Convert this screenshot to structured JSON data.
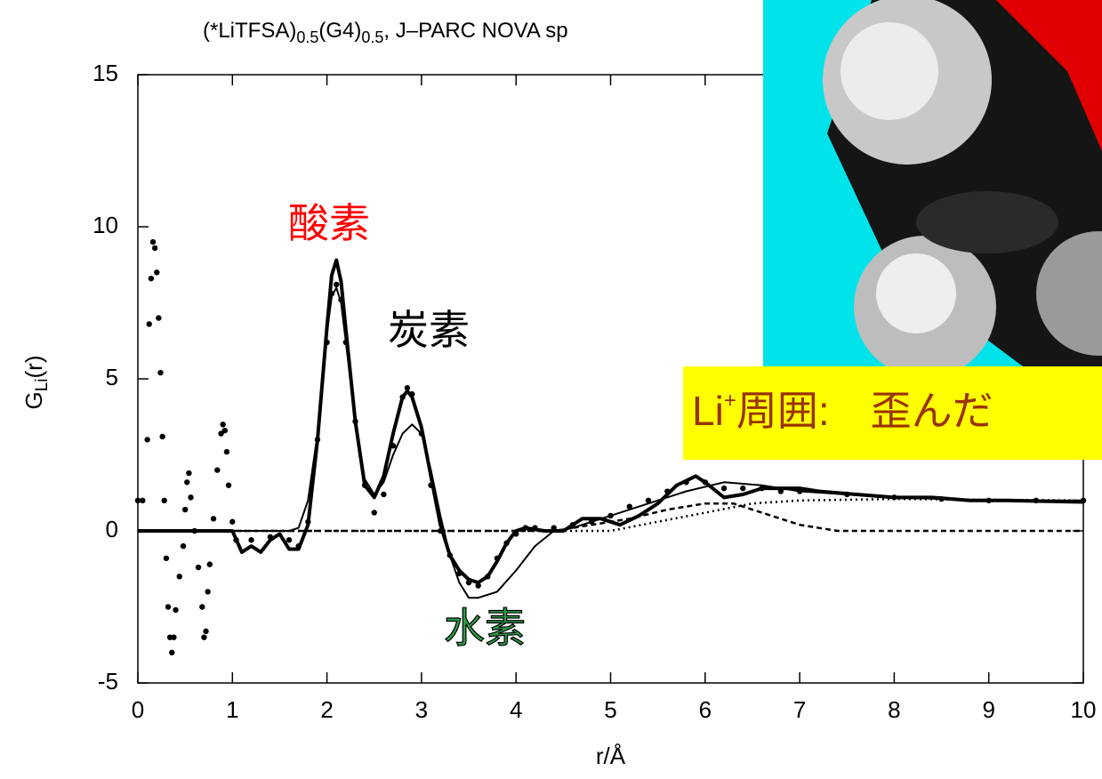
{
  "chart_data": {
    "type": "line",
    "title": [
      "(*LiTFSA)",
      "0.5",
      "(G4)",
      "0.5",
      ", J–PARC NOVA sp"
    ],
    "ylabel": [
      "G",
      "Li",
      "(r)"
    ],
    "xlabel": "r/Å",
    "xlim": [
      0,
      10
    ],
    "ylim": [
      -5,
      15
    ],
    "xticks": [
      0,
      1,
      2,
      3,
      4,
      5,
      6,
      7,
      8,
      9,
      10
    ],
    "yticks": [
      -5,
      0,
      5,
      10,
      15
    ],
    "series": [
      {
        "style": "points",
        "color": "#000000",
        "x": [
          0,
          0.05,
          0.1,
          0.12,
          0.14,
          0.16,
          0.18,
          0.2,
          0.22,
          0.24,
          0.26,
          0.28,
          0.3,
          0.32,
          0.34,
          0.36,
          0.38,
          0.4,
          0.44,
          0.48,
          0.5,
          0.52,
          0.54,
          0.56,
          0.6,
          0.64,
          0.68,
          0.7,
          0.72,
          0.74,
          0.76,
          0.8,
          0.84,
          0.88,
          0.9,
          0.92,
          0.94,
          0.96,
          1.0,
          1.04,
          1.2,
          1.4,
          1.6,
          1.7,
          1.8,
          1.9,
          2.0,
          2.05,
          2.1,
          2.15,
          2.2,
          2.3,
          2.4,
          2.5,
          2.6,
          2.7,
          2.8,
          2.85,
          2.9,
          3.0,
          3.1,
          3.2,
          3.3,
          3.4,
          3.5,
          3.6,
          3.7,
          3.8,
          3.9,
          4.0,
          4.1,
          4.2,
          4.4,
          4.6,
          4.8,
          5.0,
          5.2,
          5.4,
          5.6,
          5.8,
          6.0,
          6.2,
          6.4,
          6.6,
          6.8,
          7.0,
          7.5,
          8.0,
          8.5,
          9.0,
          9.5,
          10
        ],
        "values": [
          1,
          1,
          3,
          6.8,
          8.3,
          9.5,
          9.3,
          8.5,
          7.0,
          5.2,
          3.1,
          1,
          -0.9,
          -2.5,
          -3.5,
          -4,
          -3.5,
          -2.6,
          -1.5,
          -0.5,
          0.7,
          1.6,
          1.9,
          1.1,
          0,
          -1.2,
          -2.5,
          -3.5,
          -3.3,
          -2,
          -1.1,
          0.4,
          2.0,
          3.2,
          3.5,
          3.3,
          2.6,
          1.5,
          0.3,
          -0.3,
          -0.3,
          -0.2,
          -0.3,
          -0.5,
          0.3,
          3,
          6.2,
          7.8,
          8.1,
          7.6,
          6.2,
          3.6,
          1.5,
          0.6,
          1.2,
          2.8,
          4.4,
          4.7,
          4.5,
          3.2,
          1.5,
          0,
          -0.8,
          -1.4,
          -1.7,
          -1.8,
          -1.5,
          -0.9,
          -0.4,
          -0.1,
          0.1,
          0.1,
          0.1,
          0.2,
          0.3,
          0.5,
          0.8,
          1.0,
          1.3,
          1.6,
          1.6,
          1.4,
          1.4,
          1.4,
          1.3,
          1.3,
          1.2,
          1.1,
          1.05,
          1.0,
          1.0,
          1.0
        ]
      },
      {
        "style": "thick",
        "color": "#000000",
        "x": [
          0,
          1.0,
          1.1,
          1.2,
          1.3,
          1.4,
          1.5,
          1.6,
          1.7,
          1.8,
          1.9,
          2.0,
          2.05,
          2.1,
          2.15,
          2.2,
          2.3,
          2.4,
          2.5,
          2.6,
          2.7,
          2.8,
          2.85,
          2.9,
          3.0,
          3.1,
          3.2,
          3.3,
          3.4,
          3.5,
          3.6,
          3.7,
          3.8,
          3.9,
          4.0,
          4.1,
          4.3,
          4.5,
          4.7,
          4.9,
          5.1,
          5.3,
          5.5,
          5.7,
          5.9,
          6.0,
          6.2,
          6.4,
          6.6,
          6.8,
          7.0,
          7.2,
          7.6,
          8.0,
          8.4,
          8.8,
          9.2,
          10
        ],
        "values": [
          0,
          0,
          -0.7,
          -0.5,
          -0.7,
          -0.3,
          -0.1,
          -0.6,
          -0.6,
          0.2,
          3.0,
          6.7,
          8.4,
          8.9,
          8.2,
          6.6,
          3.6,
          1.5,
          1.1,
          1.8,
          3.2,
          4.4,
          4.6,
          4.4,
          3.4,
          1.8,
          0.2,
          -0.8,
          -1.3,
          -1.6,
          -1.7,
          -1.5,
          -1.0,
          -0.4,
          0.0,
          0.1,
          0.0,
          0.0,
          0.4,
          0.4,
          0.2,
          0.5,
          0.9,
          1.5,
          1.8,
          1.6,
          1.1,
          1.2,
          1.4,
          1.4,
          1.4,
          1.3,
          1.2,
          1.1,
          1.1,
          1.0,
          1.0,
          0.95
        ]
      },
      {
        "style": "thin",
        "color": "#000000",
        "x": [
          0,
          1.6,
          1.7,
          1.8,
          1.9,
          2.0,
          2.05,
          2.1,
          2.15,
          2.2,
          2.3,
          2.4,
          2.5,
          2.6,
          2.7,
          2.8,
          2.9,
          3.0,
          3.1,
          3.2,
          3.3,
          3.4,
          3.5,
          3.6,
          3.8,
          4.0,
          4.2,
          4.4,
          4.6,
          4.8,
          5.0,
          5.4,
          5.8,
          6.2,
          6.6,
          7.0,
          7.5,
          8,
          9,
          10
        ],
        "values": [
          0,
          0,
          0.1,
          1.0,
          3.2,
          6.5,
          7.7,
          8.0,
          7.5,
          6.2,
          3.6,
          1.7,
          1.2,
          1.6,
          2.5,
          3.2,
          3.5,
          3.2,
          2.0,
          0.5,
          -0.8,
          -1.7,
          -2.2,
          -2.2,
          -2.0,
          -1.3,
          -0.5,
          0,
          0.1,
          0.3,
          0.5,
          0.9,
          1.3,
          1.6,
          1.5,
          1.3,
          1.2,
          1.1,
          1.0,
          1.0
        ]
      },
      {
        "style": "dashed",
        "color": "#000000",
        "x": [
          0,
          4.4,
          4.8,
          5.2,
          5.6,
          6.0,
          6.3,
          6.6,
          7.0,
          7.4,
          10
        ],
        "values": [
          0,
          0,
          0.2,
          0.4,
          0.7,
          0.9,
          0.9,
          0.6,
          0.2,
          0.0,
          0
        ]
      },
      {
        "style": "dotted",
        "color": "#000000",
        "x": [
          0,
          5,
          5.5,
          6.0,
          6.5,
          7.0,
          8,
          10
        ],
        "values": [
          0,
          0,
          0.3,
          0.6,
          0.9,
          1.0,
          1.05,
          1.0
        ]
      }
    ],
    "annotations": [
      {
        "text": "酸素",
        "color": "#ff0000"
      },
      {
        "text": "炭素",
        "color": "#000000"
      },
      {
        "text": "水素",
        "color": "#2e9b4a"
      }
    ],
    "box_text": [
      "Li",
      "+",
      "周囲:　歪んだ"
    ],
    "box_color": "#ffff00",
    "box_text_color": "#993300"
  }
}
